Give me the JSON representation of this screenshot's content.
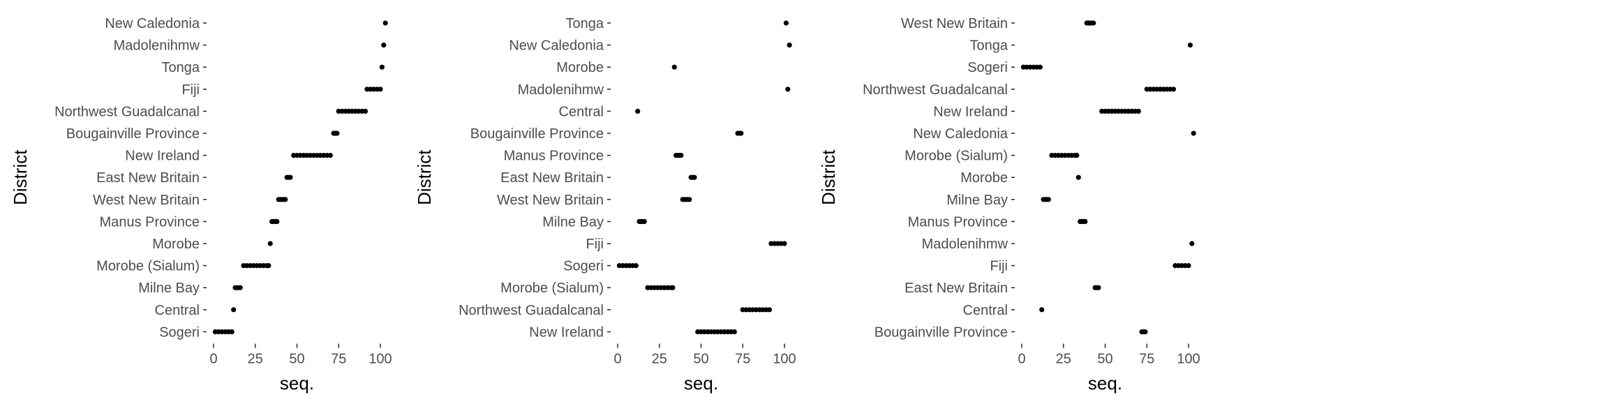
{
  "chart_data": [
    {
      "type": "scatter",
      "title": "",
      "xlabel": "seq.",
      "ylabel": "District",
      "xlim": [
        0,
        105
      ],
      "xticks": [
        0,
        25,
        50,
        75,
        100
      ],
      "grid": false,
      "point_color": "#000000",
      "categories": [
        "New Caledonia",
        "Madolenihmw",
        "Tonga",
        "Fiji",
        "Northwest Guadalcanal",
        "Bougainville Province",
        "New Ireland",
        "East New Britain",
        "West New Britain",
        "Manus Province",
        "Morobe",
        "Morobe (Sialum)",
        "Milne Bay",
        "Central",
        "Sogeri"
      ],
      "points": [
        {
          "y": "New Caledonia",
          "x": [
            103
          ]
        },
        {
          "y": "Madolenihmw",
          "x": [
            102
          ]
        },
        {
          "y": "Tonga",
          "x": [
            101
          ]
        },
        {
          "y": "Fiji",
          "x": [
            92,
            94,
            96,
            98,
            100
          ]
        },
        {
          "y": "Northwest Guadalcanal",
          "x": [
            75,
            77,
            79,
            81,
            83,
            85,
            87,
            89,
            91
          ]
        },
        {
          "y": "Bougainville Province",
          "x": [
            72,
            73,
            74
          ]
        },
        {
          "y": "New Ireland",
          "x": [
            48,
            50,
            52,
            54,
            56,
            58,
            60,
            62,
            64,
            66,
            68,
            70
          ]
        },
        {
          "y": "East New Britain",
          "x": [
            44,
            45,
            46
          ]
        },
        {
          "y": "West New Britain",
          "x": [
            39,
            40,
            41,
            42,
            43
          ]
        },
        {
          "y": "Manus Province",
          "x": [
            35,
            36,
            37,
            38
          ]
        },
        {
          "y": "Morobe",
          "x": [
            34
          ]
        },
        {
          "y": "Morobe (Sialum)",
          "x": [
            18,
            20,
            22,
            24,
            26,
            28,
            30,
            32,
            33
          ]
        },
        {
          "y": "Milne Bay",
          "x": [
            13,
            14,
            15,
            16
          ]
        },
        {
          "y": "Central",
          "x": [
            12
          ]
        },
        {
          "y": "Sogeri",
          "x": [
            1,
            3,
            5,
            7,
            9,
            11
          ]
        }
      ]
    },
    {
      "type": "scatter",
      "title": "",
      "xlabel": "seq.",
      "ylabel": "District",
      "xlim": [
        0,
        105
      ],
      "xticks": [
        0,
        25,
        50,
        75,
        100
      ],
      "grid": false,
      "point_color": "#000000",
      "categories": [
        "Tonga",
        "New Caledonia",
        "Morobe",
        "Madolenihmw",
        "Central",
        "Bougainville Province",
        "Manus Province",
        "East New Britain",
        "West New Britain",
        "Milne Bay",
        "Fiji",
        "Sogeri",
        "Morobe (Sialum)",
        "Northwest Guadalcanal",
        "New Ireland"
      ],
      "points": [
        {
          "y": "Tonga",
          "x": [
            101
          ]
        },
        {
          "y": "New Caledonia",
          "x": [
            103
          ]
        },
        {
          "y": "Morobe",
          "x": [
            34
          ]
        },
        {
          "y": "Madolenihmw",
          "x": [
            102
          ]
        },
        {
          "y": "Central",
          "x": [
            12
          ]
        },
        {
          "y": "Bougainville Province",
          "x": [
            72,
            73,
            74
          ]
        },
        {
          "y": "Manus Province",
          "x": [
            35,
            36,
            37,
            38
          ]
        },
        {
          "y": "East New Britain",
          "x": [
            44,
            45,
            46
          ]
        },
        {
          "y": "West New Britain",
          "x": [
            39,
            40,
            41,
            42,
            43
          ]
        },
        {
          "y": "Milne Bay",
          "x": [
            13,
            14,
            15,
            16
          ]
        },
        {
          "y": "Fiji",
          "x": [
            92,
            94,
            96,
            98,
            100
          ]
        },
        {
          "y": "Sogeri",
          "x": [
            1,
            3,
            5,
            7,
            9,
            11
          ]
        },
        {
          "y": "Morobe (Sialum)",
          "x": [
            18,
            20,
            22,
            24,
            26,
            28,
            30,
            32,
            33
          ]
        },
        {
          "y": "Northwest Guadalcanal",
          "x": [
            75,
            77,
            79,
            81,
            83,
            85,
            87,
            89,
            91
          ]
        },
        {
          "y": "New Ireland",
          "x": [
            48,
            50,
            52,
            54,
            56,
            58,
            60,
            62,
            64,
            66,
            68,
            70
          ]
        }
      ]
    },
    {
      "type": "scatter",
      "title": "",
      "xlabel": "seq.",
      "ylabel": "District",
      "xlim": [
        0,
        105
      ],
      "xticks": [
        0,
        25,
        50,
        75,
        100
      ],
      "grid": false,
      "point_color": "#000000",
      "categories": [
        "West New Britain",
        "Tonga",
        "Sogeri",
        "Northwest Guadalcanal",
        "New Ireland",
        "New Caledonia",
        "Morobe (Sialum)",
        "Morobe",
        "Milne Bay",
        "Manus Province",
        "Madolenihmw",
        "Fiji",
        "East New Britain",
        "Central",
        "Bougainville Province"
      ],
      "points": [
        {
          "y": "West New Britain",
          "x": [
            39,
            40,
            41,
            42,
            43
          ]
        },
        {
          "y": "Tonga",
          "x": [
            101
          ]
        },
        {
          "y": "Sogeri",
          "x": [
            1,
            3,
            5,
            7,
            9,
            11
          ]
        },
        {
          "y": "Northwest Guadalcanal",
          "x": [
            75,
            77,
            79,
            81,
            83,
            85,
            87,
            89,
            91
          ]
        },
        {
          "y": "New Ireland",
          "x": [
            48,
            50,
            52,
            54,
            56,
            58,
            60,
            62,
            64,
            66,
            68,
            70
          ]
        },
        {
          "y": "New Caledonia",
          "x": [
            103
          ]
        },
        {
          "y": "Morobe (Sialum)",
          "x": [
            18,
            20,
            22,
            24,
            26,
            28,
            30,
            32,
            33
          ]
        },
        {
          "y": "Morobe",
          "x": [
            34
          ]
        },
        {
          "y": "Milne Bay",
          "x": [
            13,
            14,
            15,
            16
          ]
        },
        {
          "y": "Manus Province",
          "x": [
            35,
            36,
            37,
            38
          ]
        },
        {
          "y": "Madolenihmw",
          "x": [
            102
          ]
        },
        {
          "y": "Fiji",
          "x": [
            92,
            94,
            96,
            98,
            100
          ]
        },
        {
          "y": "East New Britain",
          "x": [
            44,
            45,
            46
          ]
        },
        {
          "y": "Central",
          "x": [
            12
          ]
        },
        {
          "y": "Bougainville Province",
          "x": [
            72,
            73,
            74
          ]
        }
      ]
    }
  ]
}
